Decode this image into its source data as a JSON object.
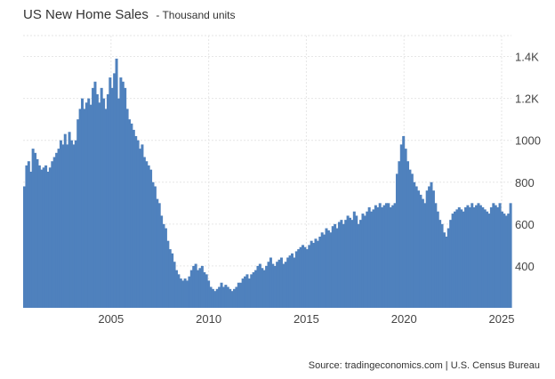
{
  "header": {
    "title": "US New Home Sales",
    "subtitle": "- Thousand units"
  },
  "source": "Source: tradingeconomics.com | U.S. Census Bureau",
  "colors": {
    "bar": "#4f81bd",
    "grid": "#e6e6e6",
    "text": "#444444"
  },
  "chart_data": {
    "type": "bar",
    "title": "US New Home Sales",
    "subtitle": "- Thousand units",
    "xlabel": "",
    "ylabel": "",
    "x_start": 2000.5,
    "x_end": 2025.5,
    "ylim": [
      200,
      1500
    ],
    "y_ticks": [
      {
        "value": 400,
        "label": "400"
      },
      {
        "value": 600,
        "label": "600"
      },
      {
        "value": 800,
        "label": "800"
      },
      {
        "value": 1000,
        "label": "1000"
      },
      {
        "value": 1200,
        "label": "1.2K"
      },
      {
        "value": 1400,
        "label": "1.4K"
      }
    ],
    "x_ticks": [
      {
        "value": 2005,
        "label": "2005"
      },
      {
        "value": 2010,
        "label": "2010"
      },
      {
        "value": 2015,
        "label": "2015"
      },
      {
        "value": 2020,
        "label": "2020"
      },
      {
        "value": 2025,
        "label": "2025"
      }
    ],
    "grid": true,
    "legend": "none",
    "values": [
      780,
      880,
      900,
      850,
      960,
      940,
      910,
      880,
      860,
      870,
      880,
      850,
      870,
      900,
      920,
      940,
      960,
      1000,
      980,
      1030,
      980,
      1040,
      1000,
      980,
      1000,
      1100,
      1150,
      1200,
      1150,
      1180,
      1200,
      1170,
      1250,
      1280,
      1220,
      1180,
      1250,
      1200,
      1150,
      1220,
      1300,
      1250,
      1320,
      1390,
      1200,
      1300,
      1280,
      1250,
      1150,
      1100,
      1080,
      1050,
      1020,
      1000,
      960,
      980,
      920,
      900,
      880,
      860,
      800,
      780,
      720,
      700,
      640,
      600,
      580,
      520,
      480,
      460,
      420,
      380,
      360,
      340,
      330,
      340,
      330,
      350,
      380,
      400,
      410,
      380,
      390,
      400,
      370,
      360,
      330,
      300,
      290,
      280,
      290,
      300,
      320,
      300,
      310,
      300,
      290,
      280,
      290,
      300,
      320,
      320,
      340,
      350,
      360,
      340,
      360,
      370,
      380,
      400,
      410,
      390,
      380,
      400,
      420,
      440,
      410,
      400,
      420,
      430,
      440,
      410,
      420,
      440,
      450,
      460,
      440,
      470,
      480,
      490,
      500,
      490,
      480,
      500,
      520,
      510,
      530,
      520,
      540,
      560,
      550,
      580,
      570,
      560,
      590,
      600,
      580,
      610,
      620,
      600,
      620,
      640,
      630,
      620,
      660,
      640,
      600,
      620,
      650,
      640,
      660,
      680,
      660,
      670,
      690,
      680,
      700,
      680,
      690,
      700,
      700,
      680,
      690,
      700,
      840,
      900,
      980,
      1020,
      960,
      900,
      860,
      840,
      800,
      780,
      760,
      740,
      720,
      700,
      760,
      780,
      800,
      760,
      700,
      660,
      620,
      600,
      560,
      540,
      580,
      620,
      650,
      660,
      670,
      680,
      670,
      660,
      680,
      690,
      680,
      700,
      680,
      690,
      700,
      690,
      680,
      670,
      660,
      650,
      680,
      700,
      690,
      680,
      700,
      660,
      650,
      640,
      650,
      700
    ]
  }
}
